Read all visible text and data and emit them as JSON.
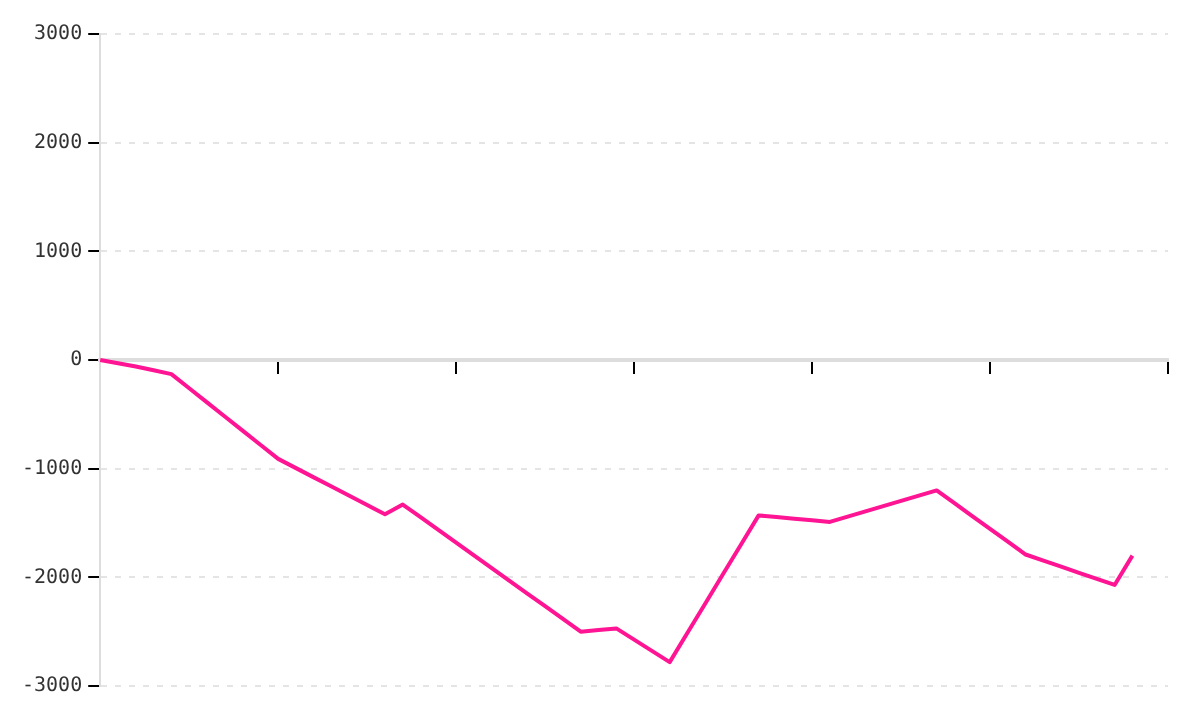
{
  "chart_data": {
    "type": "line",
    "categories": [
      null,
      null,
      null,
      null,
      null,
      null,
      null,
      null,
      null,
      null,
      null,
      null,
      null,
      null,
      null,
      null,
      null,
      null,
      null,
      null,
      null,
      null,
      null,
      null,
      null,
      null,
      null,
      null,
      null,
      null,
      null,
      null,
      null,
      null,
      null,
      null,
      null,
      null,
      null,
      null,
      null,
      null,
      null,
      null,
      null,
      null,
      null,
      null,
      null,
      null,
      null,
      null,
      null,
      null,
      null,
      null,
      null,
      null,
      null,
      null,
      null
    ],
    "series": [
      {
        "color": "#ff1493",
        "values": [
          0,
          -30,
          -60,
          -95,
          -130,
          -260,
          -390,
          -520,
          -650,
          -780,
          -910,
          -995,
          -1080,
          -1165,
          -1250,
          -1335,
          -1420,
          -1330,
          -1447,
          -1564,
          -1681,
          -1798,
          -1915,
          -2032,
          -2149,
          -2266,
          -2383,
          -2500,
          -2485,
          -2470,
          -2573,
          -2677,
          -2780,
          -2510,
          -2240,
          -1970,
          -1700,
          -1430,
          -1445,
          -1460,
          -1475,
          -1490,
          -1442,
          -1393,
          -1345,
          -1297,
          -1248,
          -1200,
          -1318,
          -1436,
          -1554,
          -1672,
          -1790,
          -1846,
          -1902,
          -1958,
          -2014,
          -2070,
          -1800,
          null,
          null
        ]
      }
    ],
    "ylim": [
      -3000,
      3000
    ],
    "yticks": [
      -3000,
      -2000,
      -1000,
      0,
      1000,
      2000,
      3000
    ],
    "grid": "y",
    "marker": "none",
    "line_style": "solid",
    "tick_labels": "y"
  }
}
